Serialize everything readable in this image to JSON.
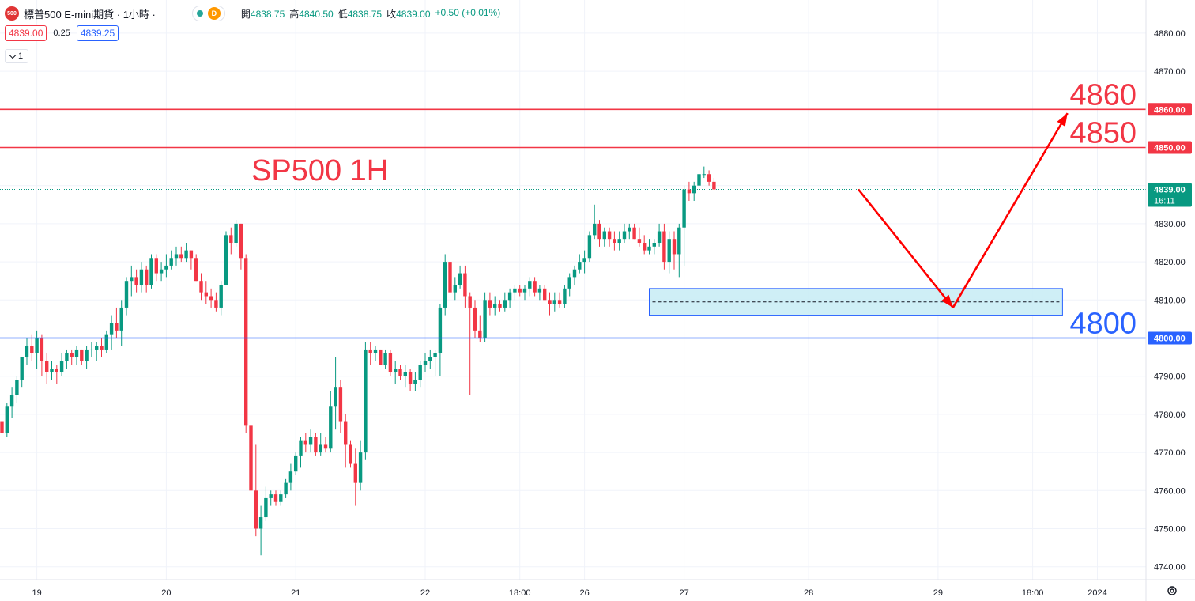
{
  "header": {
    "logo_text": "500",
    "title": "標普500 E-mini期貨 · 1小時 ·",
    "status_badge": "D",
    "ohlc": [
      {
        "label": "開",
        "value": "4838.75"
      },
      {
        "label": "高",
        "value": "4840.50"
      },
      {
        "label": "低",
        "value": "4838.75"
      },
      {
        "label": "收",
        "value": "4839.00"
      },
      {
        "label": "",
        "value": "+0.50 (+0.01%)"
      }
    ],
    "sell_price": "4839.00",
    "spread": "0.25",
    "buy_price": "4839.25",
    "volume_toggle": "1"
  },
  "colors": {
    "up": "#089981",
    "down": "#f23645",
    "resistance": "#f23645",
    "support": "#2962ff",
    "zone_fill": "#c7ecf5",
    "zone_border": "#2962ff",
    "arrow": "#ff0000",
    "grid": "#f0f3fa",
    "axis_text": "#131722"
  },
  "chart_data": {
    "type": "candlestick",
    "title": "SP500 1H",
    "xlabel": "",
    "ylabel": "",
    "ylim": [
      4738,
      4884
    ],
    "y_ticks": [
      "4740.00",
      "4750.00",
      "4760.00",
      "4770.00",
      "4780.00",
      "4790.00",
      "4800.00",
      "4810.00",
      "4820.00",
      "4830.00",
      "4840.00",
      "4850.00",
      "4860.00",
      "4870.00",
      "4880.00"
    ],
    "x_ticks": [
      {
        "label": "19",
        "index": 7
      },
      {
        "label": "20",
        "index": 33
      },
      {
        "label": "21",
        "index": 59
      },
      {
        "label": "22",
        "index": 85
      },
      {
        "label": "18:00",
        "index": 104
      },
      {
        "label": "26",
        "index": 117
      },
      {
        "label": "27",
        "index": 137
      },
      {
        "label": "28",
        "index": 162
      },
      {
        "label": "29",
        "index": 188
      },
      {
        "label": "18:00",
        "index": 207
      },
      {
        "label": "2024",
        "index": 220
      }
    ],
    "candles": [
      [
        4778,
        4780,
        4773,
        4775
      ],
      [
        4775,
        4783,
        4774,
        4782
      ],
      [
        4782,
        4787,
        4779,
        4785
      ],
      [
        4785,
        4790,
        4783,
        4789
      ],
      [
        4789,
        4795,
        4787,
        4795
      ],
      [
        4795,
        4800,
        4793,
        4798
      ],
      [
        4798,
        4801,
        4794,
        4796
      ],
      [
        4796,
        4802,
        4792,
        4800
      ],
      [
        4800,
        4801,
        4790,
        4794
      ],
      [
        4794,
        4796,
        4788,
        4791
      ],
      [
        4791,
        4794,
        4789,
        4792
      ],
      [
        4792,
        4793,
        4788,
        4791
      ],
      [
        4791,
        4796,
        4790,
        4794
      ],
      [
        4794,
        4797,
        4792,
        4796
      ],
      [
        4796,
        4797,
        4793,
        4795
      ],
      [
        4795,
        4798,
        4793,
        4797
      ],
      [
        4797,
        4797,
        4793,
        4794
      ],
      [
        4794,
        4798,
        4792,
        4797
      ],
      [
        4797,
        4799,
        4795,
        4797
      ],
      [
        4797,
        4799,
        4794,
        4798
      ],
      [
        4798,
        4800,
        4795,
        4797
      ],
      [
        4797,
        4802,
        4796,
        4801
      ],
      [
        4801,
        4806,
        4797,
        4804
      ],
      [
        4804,
        4808,
        4800,
        4802
      ],
      [
        4802,
        4810,
        4798,
        4808
      ],
      [
        4808,
        4816,
        4806,
        4815
      ],
      [
        4815,
        4819,
        4811,
        4816
      ],
      [
        4816,
        4818,
        4812,
        4814
      ],
      [
        4814,
        4820,
        4812,
        4818
      ],
      [
        4818,
        4819,
        4812,
        4814
      ],
      [
        4814,
        4822,
        4813,
        4821
      ],
      [
        4821,
        4822,
        4815,
        4817
      ],
      [
        4817,
        4820,
        4815,
        4818
      ],
      [
        4818,
        4822,
        4816,
        4819
      ],
      [
        4819,
        4823,
        4818,
        4821
      ],
      [
        4821,
        4824,
        4819,
        4822
      ],
      [
        4822,
        4824,
        4820,
        4821
      ],
      [
        4821,
        4825,
        4820,
        4823
      ],
      [
        4823,
        4823,
        4818,
        4821
      ],
      [
        4821,
        4822,
        4815,
        4815
      ],
      [
        4815,
        4817,
        4810,
        4812
      ],
      [
        4812,
        4815,
        4809,
        4811
      ],
      [
        4811,
        4813,
        4808,
        4810
      ],
      [
        4810,
        4812,
        4807,
        4808
      ],
      [
        4808,
        4815,
        4806,
        4814
      ],
      [
        4814,
        4828,
        4814,
        4827
      ],
      [
        4827,
        4829,
        4822,
        4825
      ],
      [
        4825,
        4831,
        4824,
        4830
      ],
      [
        4830,
        4830,
        4818,
        4821
      ],
      [
        4821,
        4822,
        4775,
        4777
      ],
      [
        4777,
        4782,
        4752,
        4760
      ],
      [
        4760,
        4772,
        4748,
        4750
      ],
      [
        4750,
        4756,
        4743,
        4753
      ],
      [
        4753,
        4761,
        4752,
        4758
      ],
      [
        4758,
        4760,
        4756,
        4759
      ],
      [
        4759,
        4760,
        4756,
        4757
      ],
      [
        4757,
        4760,
        4756,
        4759
      ],
      [
        4759,
        4763,
        4758,
        4762
      ],
      [
        4762,
        4767,
        4760,
        4765
      ],
      [
        4765,
        4770,
        4764,
        4769
      ],
      [
        4769,
        4774,
        4766,
        4773
      ],
      [
        4773,
        4775,
        4770,
        4772
      ],
      [
        4772,
        4776,
        4770,
        4774
      ],
      [
        4774,
        4775,
        4769,
        4770
      ],
      [
        4770,
        4775,
        4769,
        4772
      ],
      [
        4772,
        4774,
        4770,
        4771
      ],
      [
        4771,
        4786,
        4770,
        4782
      ],
      [
        4782,
        4795,
        4776,
        4787
      ],
      [
        4787,
        4789,
        4775,
        4778
      ],
      [
        4778,
        4780,
        4766,
        4772
      ],
      [
        4772,
        4773,
        4766,
        4767
      ],
      [
        4767,
        4771,
        4756,
        4762
      ],
      [
        4762,
        4773,
        4760,
        4770
      ],
      [
        4770,
        4799,
        4768,
        4797
      ],
      [
        4797,
        4799,
        4793,
        4796
      ],
      [
        4796,
        4798,
        4794,
        4797
      ],
      [
        4797,
        4797,
        4793,
        4793
      ],
      [
        4793,
        4797,
        4792,
        4796
      ],
      [
        4796,
        4797,
        4790,
        4791
      ],
      [
        4791,
        4794,
        4788,
        4792
      ],
      [
        4792,
        4793,
        4789,
        4790
      ],
      [
        4790,
        4793,
        4787,
        4791
      ],
      [
        4791,
        4792,
        4786,
        4788
      ],
      [
        4788,
        4791,
        4786,
        4789
      ],
      [
        4789,
        4794,
        4787,
        4793
      ],
      [
        4793,
        4796,
        4791,
        4794
      ],
      [
        4794,
        4797,
        4792,
        4795
      ],
      [
        4795,
        4797,
        4790,
        4796
      ],
      [
        4796,
        4809,
        4790,
        4808
      ],
      [
        4808,
        4822,
        4806,
        4820
      ],
      [
        4820,
        4821,
        4811,
        4812
      ],
      [
        4812,
        4816,
        4810,
        4814
      ],
      [
        4814,
        4819,
        4813,
        4817
      ],
      [
        4817,
        4819,
        4808,
        4811
      ],
      [
        4811,
        4812,
        4785,
        4808
      ],
      [
        4808,
        4810,
        4800,
        4802
      ],
      [
        4802,
        4806,
        4799,
        4800
      ],
      [
        4800,
        4812,
        4799,
        4810
      ],
      [
        4810,
        4812,
        4806,
        4808
      ],
      [
        4808,
        4811,
        4806,
        4809
      ],
      [
        4809,
        4810,
        4807,
        4808
      ],
      [
        4808,
        4812,
        4807,
        4810
      ],
      [
        4810,
        4813,
        4808,
        4812
      ],
      [
        4812,
        4814,
        4810,
        4813
      ],
      [
        4813,
        4814,
        4811,
        4812
      ],
      [
        4812,
        4814,
        4810,
        4813
      ],
      [
        4813,
        4816,
        4811,
        4815
      ],
      [
        4815,
        4816,
        4811,
        4812
      ],
      [
        4812,
        4814,
        4810,
        4813
      ],
      [
        4813,
        4814,
        4810,
        4810
      ],
      [
        4810,
        4812,
        4806,
        4809
      ],
      [
        4809,
        4812,
        4807,
        4810
      ],
      [
        4810,
        4812,
        4808,
        4809
      ],
      [
        4809,
        4814,
        4808,
        4813
      ],
      [
        4813,
        4817,
        4811,
        4816
      ],
      [
        4816,
        4819,
        4814,
        4818
      ],
      [
        4818,
        4822,
        4817,
        4820
      ],
      [
        4820,
        4823,
        4817,
        4821
      ],
      [
        4821,
        4828,
        4820,
        4827
      ],
      [
        4827,
        4835,
        4826,
        4830
      ],
      [
        4830,
        4831,
        4824,
        4826
      ],
      [
        4826,
        4829,
        4824,
        4828
      ],
      [
        4828,
        4829,
        4824,
        4826
      ],
      [
        4826,
        4828,
        4823,
        4825
      ],
      [
        4825,
        4828,
        4823,
        4826
      ],
      [
        4826,
        4830,
        4825,
        4828
      ],
      [
        4828,
        4830,
        4826,
        4829
      ],
      [
        4829,
        4830,
        4826,
        4826
      ],
      [
        4826,
        4829,
        4824,
        4825
      ],
      [
        4825,
        4827,
        4822,
        4823
      ],
      [
        4823,
        4826,
        4822,
        4824
      ],
      [
        4824,
        4826,
        4822,
        4825
      ],
      [
        4825,
        4830,
        4824,
        4828
      ],
      [
        4828,
        4830,
        4818,
        4820
      ],
      [
        4820,
        4828,
        4817,
        4826
      ],
      [
        4826,
        4828,
        4818,
        4822
      ],
      [
        4822,
        4830,
        4816,
        4829
      ],
      [
        4829,
        4840,
        4819,
        4839
      ],
      [
        4839,
        4841,
        4836,
        4838
      ],
      [
        4838,
        4841,
        4836,
        4840
      ],
      [
        4840,
        4844,
        4838,
        4843
      ],
      [
        4843,
        4845,
        4842,
        4843
      ],
      [
        4843,
        4844,
        4840,
        4841
      ],
      [
        4841,
        4842,
        4839,
        4839
      ]
    ],
    "horizontal_lines": [
      {
        "price": 4860,
        "label": "4860",
        "axis_label": "4860.00",
        "kind": "resistance"
      },
      {
        "price": 4850,
        "label": "4850",
        "axis_label": "4850.00",
        "kind": "resistance"
      },
      {
        "price": 4800,
        "label": "4800",
        "axis_label": "4800.00",
        "kind": "support"
      }
    ],
    "zone": {
      "price_top": 4813,
      "price_bottom": 4806,
      "mid_price": 4809.5,
      "start_index": 130,
      "end_index": 213
    },
    "arrow_path": [
      {
        "index": 172,
        "price": 4839
      },
      {
        "index": 191,
        "price": 4808
      },
      {
        "index": 214,
        "price": 4859
      }
    ],
    "current_price": {
      "value": "4839.00",
      "countdown": "16:11",
      "price": 4839
    }
  }
}
